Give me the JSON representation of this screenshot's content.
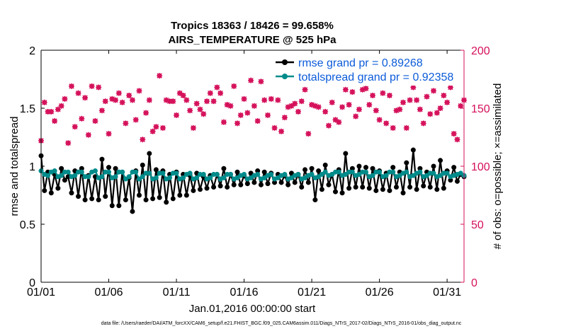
{
  "window": {
    "title_line1": "Tropics 18363 / 18426 = 99.658%",
    "title_line2": "AIRS_TEMPERATURE @ 525 hPa",
    "xlabel": "Jan.01,2016 00:00:00 start",
    "ylabel_left": "rmse and totalspread",
    "ylabel_right": "# of obs: o=possible; ×=assimilated",
    "footnote": "data file: /Users/raeder/DAI/ATM_forcXX/CAM6_setup/f.e21.FHIST_BGC.f09_025.CAM6assim.011/Diags_NTrS_2017-02/Diags_NTrS_2016-01/obs_diag_output.nc",
    "colors": {
      "rmse": "#000000",
      "spread": "#008b8b",
      "obs": "#d5105a",
      "legend_text": "#0b5bd9"
    }
  },
  "chart_data": {
    "type": "line",
    "title": "Tropics 18363 / 18426 = 99.658%",
    "subtitle": "AIRS_TEMPERATURE @ 525 hPa",
    "xlabel": "Jan.01,2016 00:00:00 start",
    "ylabel": "rmse and totalspread",
    "y2label": "# of obs: o=possible; ×=assimilated",
    "x_unit": "day of January 2016 (fractional, 6-hourly)",
    "x_range": [
      1,
      32.25
    ],
    "xticks": [
      1,
      6,
      11,
      16,
      21,
      26,
      31
    ],
    "xtick_labels": [
      "01/01",
      "01/06",
      "01/11",
      "01/16",
      "01/21",
      "01/26",
      "01/31"
    ],
    "ylim": [
      0,
      2
    ],
    "yticks": [
      0,
      0.5,
      1,
      1.5,
      2
    ],
    "ytick_labels": [
      "0",
      "0.5",
      "1",
      "1.5",
      "2"
    ],
    "y2lim": [
      0,
      200
    ],
    "y2ticks": [
      0,
      50,
      100,
      150,
      200
    ],
    "y2tick_labels": [
      "0",
      "50",
      "100",
      "150",
      "200"
    ],
    "grid": false,
    "legend_position": "top-right",
    "legend": [
      "rmse grand pr = 0.89268",
      "totalspread grand pr = 0.92358"
    ],
    "x": [
      1.0,
      1.25,
      1.5,
      1.75,
      2.0,
      2.25,
      2.5,
      2.75,
      3.0,
      3.25,
      3.5,
      3.75,
      4.0,
      4.25,
      4.5,
      4.75,
      5.0,
      5.25,
      5.5,
      5.75,
      6.0,
      6.25,
      6.5,
      6.75,
      7.0,
      7.25,
      7.5,
      7.75,
      8.0,
      8.25,
      8.5,
      8.75,
      9.0,
      9.25,
      9.5,
      9.75,
      10.0,
      10.25,
      10.5,
      10.75,
      11.0,
      11.25,
      11.5,
      11.75,
      12.0,
      12.25,
      12.5,
      12.75,
      13.0,
      13.25,
      13.5,
      13.75,
      14.0,
      14.25,
      14.5,
      14.75,
      15.0,
      15.25,
      15.5,
      15.75,
      16.0,
      16.25,
      16.5,
      16.75,
      17.0,
      17.25,
      17.5,
      17.75,
      18.0,
      18.25,
      18.5,
      18.75,
      19.0,
      19.25,
      19.5,
      19.75,
      20.0,
      20.25,
      20.5,
      20.75,
      21.0,
      21.25,
      21.5,
      21.75,
      22.0,
      22.25,
      22.5,
      22.75,
      23.0,
      23.25,
      23.5,
      23.75,
      24.0,
      24.25,
      24.5,
      24.75,
      25.0,
      25.25,
      25.5,
      25.75,
      26.0,
      26.25,
      26.5,
      26.75,
      27.0,
      27.25,
      27.5,
      27.75,
      28.0,
      28.25,
      28.5,
      28.75,
      29.0,
      29.25,
      29.5,
      29.75,
      30.0,
      30.25,
      30.5,
      30.75,
      31.0,
      31.25,
      31.5,
      31.75,
      32.0,
      32.25
    ],
    "series": [
      {
        "name": "rmse grand pr = 0.89268",
        "axis": "left",
        "values": [
          1.09,
          0.79,
          0.95,
          0.77,
          0.93,
          0.81,
          0.98,
          0.88,
          0.91,
          0.77,
          0.96,
          0.74,
          0.98,
          0.71,
          0.92,
          0.72,
          0.91,
          0.71,
          1.06,
          0.74,
          0.99,
          0.66,
          0.98,
          0.66,
          0.95,
          0.71,
          0.9,
          0.61,
          0.96,
          0.75,
          1.01,
          0.71,
          1.11,
          0.72,
          0.97,
          0.73,
          0.96,
          0.69,
          0.93,
          0.72,
          0.95,
          0.75,
          0.93,
          0.75,
          0.92,
          0.79,
          0.94,
          0.8,
          0.91,
          0.81,
          0.92,
          0.82,
          0.93,
          0.83,
          0.98,
          0.82,
          0.93,
          0.84,
          0.95,
          0.84,
          0.92,
          0.85,
          0.94,
          0.86,
          0.96,
          0.84,
          0.95,
          0.85,
          0.94,
          0.86,
          0.93,
          0.86,
          0.92,
          0.84,
          0.94,
          0.86,
          0.93,
          0.82,
          0.97,
          0.86,
          0.98,
          0.71,
          0.96,
          0.8,
          1.01,
          0.84,
          0.93,
          0.78,
          0.97,
          0.77,
          1.11,
          0.81,
          0.98,
          0.82,
          1.0,
          0.82,
          0.99,
          0.81,
          0.98,
          0.79,
          0.96,
          0.8,
          0.94,
          0.79,
          0.99,
          0.82,
          0.95,
          0.77,
          1.03,
          0.82,
          1.14,
          0.8,
          0.98,
          0.83,
          0.95,
          0.82,
          1.0,
          0.8,
          1.05,
          0.81,
          0.96,
          0.88,
          0.99,
          0.87,
          0.93,
          0.91
        ]
      },
      {
        "name": "totalspread grand pr = 0.92358",
        "axis": "left",
        "values": [
          0.96,
          0.93,
          0.92,
          0.95,
          0.96,
          0.91,
          0.92,
          0.95,
          0.95,
          0.91,
          0.92,
          0.95,
          0.95,
          0.91,
          0.91,
          0.95,
          0.96,
          0.9,
          0.91,
          0.95,
          0.95,
          0.9,
          0.91,
          0.95,
          0.95,
          0.89,
          0.91,
          0.95,
          0.95,
          0.89,
          0.91,
          0.94,
          0.94,
          0.89,
          0.9,
          0.94,
          0.94,
          0.89,
          0.9,
          0.94,
          0.94,
          0.89,
          0.9,
          0.93,
          0.94,
          0.89,
          0.9,
          0.93,
          0.93,
          0.89,
          0.9,
          0.93,
          0.93,
          0.89,
          0.9,
          0.93,
          0.93,
          0.89,
          0.9,
          0.92,
          0.93,
          0.89,
          0.9,
          0.92,
          0.93,
          0.89,
          0.9,
          0.92,
          0.93,
          0.89,
          0.9,
          0.92,
          0.93,
          0.89,
          0.9,
          0.92,
          0.93,
          0.89,
          0.9,
          0.92,
          0.93,
          0.9,
          0.91,
          0.93,
          0.95,
          0.92,
          0.93,
          0.95,
          0.95,
          0.92,
          0.93,
          0.95,
          0.95,
          0.92,
          0.93,
          0.95,
          0.95,
          0.91,
          0.92,
          0.95,
          0.95,
          0.91,
          0.92,
          0.95,
          0.95,
          0.91,
          0.92,
          0.94,
          0.95,
          0.91,
          0.92,
          0.94,
          0.95,
          0.91,
          0.92,
          0.94,
          0.94,
          0.91,
          0.92,
          0.94,
          0.94,
          0.91,
          0.92,
          0.93,
          0.94,
          0.92
        ]
      },
      {
        "name": "obs possible (o)",
        "axis": "right",
        "values": [
          122,
          155,
          147,
          147,
          139,
          149,
          152,
          158,
          120,
          169,
          134,
          163,
          141,
          159,
          127,
          169,
          139,
          168,
          148,
          156,
          128,
          158,
          157,
          163,
          155,
          137,
          161,
          157,
          140,
          165,
          123,
          146,
          157,
          130,
          134,
          178,
          133,
          157,
          156,
          156,
          144,
          163,
          161,
          157,
          148,
          133,
          154,
          149,
          145,
          156,
          163,
          156,
          168,
          163,
          138,
          153,
          152,
          169,
          137,
          144,
          158,
          146,
          174,
          152,
          139,
          173,
          157,
          144,
          158,
          133,
          157,
          130,
          142,
          151,
          152,
          154,
          147,
          156,
          166,
          128,
          153,
          152,
          151,
          172,
          147,
          135,
          155,
          140,
          138,
          151,
          166,
          153,
          164,
          143,
          149,
          166,
          167,
          153,
          161,
          148,
          140,
          163,
          137,
          161,
          133,
          148,
          149,
          155,
          133,
          157,
          168,
          157,
          149,
          137,
          160,
          145,
          165,
          146,
          150,
          161,
          155,
          168,
          128,
          123,
          152,
          157
        ]
      },
      {
        "name": "obs assimilated (×)",
        "axis": "right",
        "values": [
          122,
          155,
          147,
          147,
          139,
          149,
          152,
          158,
          120,
          169,
          134,
          163,
          141,
          159,
          127,
          169,
          139,
          168,
          148,
          156,
          128,
          158,
          157,
          163,
          155,
          137,
          161,
          157,
          140,
          165,
          123,
          146,
          157,
          130,
          134,
          178,
          133,
          157,
          156,
          156,
          144,
          163,
          161,
          157,
          148,
          133,
          154,
          149,
          145,
          156,
          163,
          156,
          168,
          163,
          138,
          153,
          152,
          169,
          137,
          144,
          158,
          146,
          174,
          152,
          139,
          173,
          157,
          144,
          158,
          133,
          157,
          130,
          142,
          151,
          152,
          154,
          147,
          156,
          166,
          128,
          153,
          152,
          151,
          172,
          147,
          135,
          155,
          140,
          138,
          151,
          166,
          153,
          164,
          143,
          149,
          166,
          167,
          153,
          161,
          148,
          140,
          163,
          137,
          161,
          133,
          148,
          149,
          155,
          133,
          157,
          168,
          157,
          149,
          137,
          160,
          145,
          165,
          146,
          150,
          161,
          155,
          168,
          128,
          123,
          152,
          157
        ]
      }
    ]
  }
}
